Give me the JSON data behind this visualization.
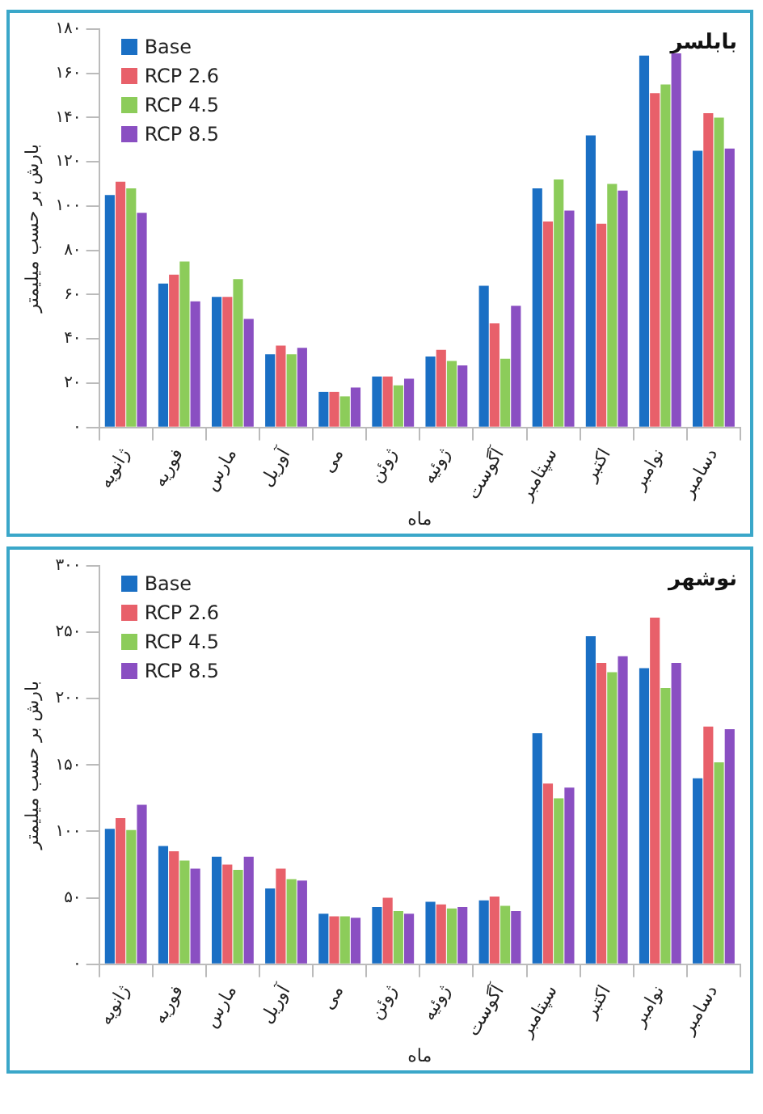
{
  "chart_data": [
    {
      "type": "bar",
      "title": "بابلسر",
      "xlabel": "ماه",
      "ylabel": "بارش بر حسب میلیمتر",
      "categories": [
        "ژانویه",
        "فوریه",
        "مارس",
        "آوریل",
        "می",
        "ژوئن",
        "ژوئیه",
        "آگوست",
        "سپتامبر",
        "اکتبر",
        "نوامبر",
        "دسامبر"
      ],
      "series": [
        {
          "name": "Base",
          "color": "#1a6fc4",
          "values": [
            105,
            65,
            59,
            33,
            16,
            23,
            32,
            64,
            108,
            132,
            168,
            125
          ]
        },
        {
          "name": "RCP 2.6",
          "color": "#e8606a",
          "values": [
            111,
            69,
            59,
            37,
            16,
            23,
            35,
            47,
            93,
            92,
            151,
            142
          ]
        },
        {
          "name": "RCP 4.5",
          "color": "#8ccc5a",
          "values": [
            108,
            75,
            67,
            33,
            14,
            19,
            30,
            31,
            112,
            110,
            155,
            140
          ]
        },
        {
          "name": "RCP 8.5",
          "color": "#8a4fc2",
          "values": [
            97,
            57,
            49,
            36,
            18,
            22,
            28,
            55,
            98,
            107,
            169,
            126
          ]
        }
      ],
      "ylim": [
        0,
        180
      ],
      "yticks": [
        {
          "value": 0,
          "label": "۰"
        },
        {
          "value": 20,
          "label": "۲۰"
        },
        {
          "value": 40,
          "label": "۴۰"
        },
        {
          "value": 60,
          "label": "۶۰"
        },
        {
          "value": 80,
          "label": "۸۰"
        },
        {
          "value": 100,
          "label": "۱۰۰"
        },
        {
          "value": 120,
          "label": "۱۲۰"
        },
        {
          "value": 140,
          "label": "۱۴۰"
        },
        {
          "value": 160,
          "label": "۱۶۰"
        },
        {
          "value": 180,
          "label": "۱۸۰"
        }
      ],
      "grid": false,
      "legend": "top left"
    },
    {
      "type": "bar",
      "title": "نوشهر",
      "xlabel": "ماه",
      "ylabel": "بارش بر حسب میلیمتر",
      "categories": [
        "ژانویه",
        "فوریه",
        "مارس",
        "آوریل",
        "می",
        "ژوئن",
        "ژوئیه",
        "آگوست",
        "سپتامبر",
        "اکتبر",
        "نوامبر",
        "دسامبر"
      ],
      "series": [
        {
          "name": "Base",
          "color": "#1a6fc4",
          "values": [
            102,
            89,
            81,
            57,
            38,
            43,
            47,
            48,
            174,
            247,
            223,
            140
          ]
        },
        {
          "name": "RCP 2.6",
          "color": "#e8606a",
          "values": [
            110,
            85,
            75,
            72,
            36,
            50,
            45,
            51,
            136,
            227,
            261,
            179
          ]
        },
        {
          "name": "RCP 4.5",
          "color": "#8ccc5a",
          "values": [
            101,
            78,
            71,
            64,
            36,
            40,
            42,
            44,
            125,
            220,
            208,
            152
          ]
        },
        {
          "name": "RCP 8.5",
          "color": "#8a4fc2",
          "values": [
            120,
            72,
            81,
            63,
            35,
            38,
            43,
            40,
            133,
            232,
            227,
            177
          ]
        }
      ],
      "ylim": [
        0,
        300
      ],
      "yticks": [
        {
          "value": 0,
          "label": "۰"
        },
        {
          "value": 50,
          "label": "۵۰"
        },
        {
          "value": 100,
          "label": "۱۰۰"
        },
        {
          "value": 150,
          "label": "۱۵۰"
        },
        {
          "value": 200,
          "label": "۲۰۰"
        },
        {
          "value": 250,
          "label": "۲۵۰"
        },
        {
          "value": 300,
          "label": "۳۰۰"
        }
      ],
      "grid": false,
      "legend": "top left"
    }
  ]
}
